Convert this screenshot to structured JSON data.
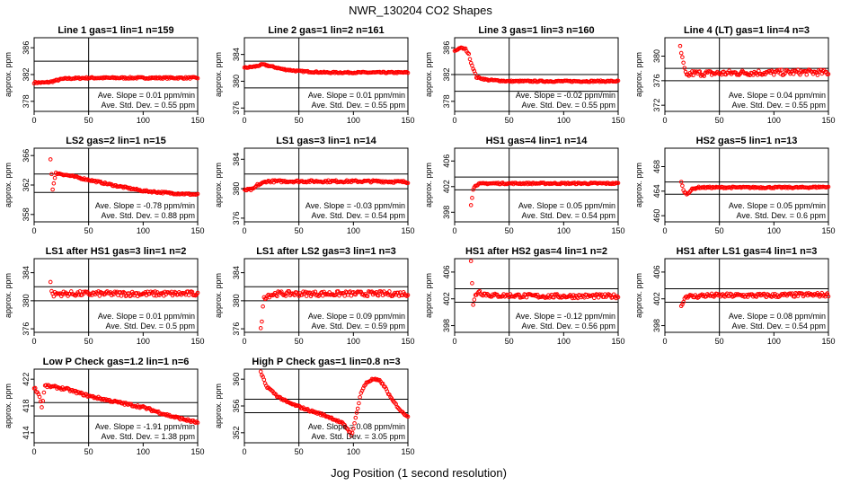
{
  "figure": {
    "title": "NWR_130204  CO2 Shapes",
    "xlabel": "Jog Position (1 second resolution)",
    "ylabel": "approx. ppm",
    "point_color": "#ff0000",
    "ref_line_color": "#000000"
  },
  "chart_data": [
    {
      "type": "scatter",
      "title": "Line 1 gas=1 lin=1 n=159",
      "xlim": [
        0,
        150
      ],
      "ylim": [
        376.5,
        387.5
      ],
      "yticks": [
        378,
        382,
        386
      ],
      "xticks": [
        0,
        50,
        100,
        150
      ],
      "hlines": [
        384,
        380
      ],
      "vline": 50,
      "slope_text": "Ave. Slope = 0.01  ppm/min",
      "sd_text": "Ave. Std. Dev. = 0.55  ppm",
      "x": [
        0,
        10,
        15,
        20,
        25,
        30,
        50,
        75,
        100,
        125,
        150
      ],
      "y": [
        380.8,
        380.8,
        380.9,
        381.1,
        381.3,
        381.4,
        381.5,
        381.5,
        381.5,
        381.5,
        381.5
      ],
      "noise": 0.12,
      "start": 0,
      "end": 150
    },
    {
      "type": "scatter",
      "title": "Line 2 gas=1 lin=2 n=161",
      "xlim": [
        0,
        150
      ],
      "ylim": [
        375.5,
        386.5
      ],
      "yticks": [
        376,
        380,
        384
      ],
      "xticks": [
        0,
        50,
        100,
        150
      ],
      "hlines": [
        383,
        379
      ],
      "vline": 50,
      "slope_text": "Ave. Slope = 0.01  ppm/min",
      "sd_text": "Ave. Std. Dev. = 0.55  ppm",
      "x": [
        0,
        10,
        17,
        25,
        35,
        50,
        75,
        100,
        125,
        150
      ],
      "y": [
        382.0,
        382.2,
        382.5,
        382.2,
        381.8,
        381.5,
        381.3,
        381.3,
        381.3,
        381.3
      ],
      "noise": 0.1,
      "start": 0,
      "end": 150
    },
    {
      "type": "scatter",
      "title": "Line 3 gas=1 lin=3 n=160",
      "xlim": [
        0,
        150
      ],
      "ylim": [
        376.5,
        387.5
      ],
      "yticks": [
        378,
        382,
        386
      ],
      "xticks": [
        0,
        50,
        100,
        150
      ],
      "hlines": [
        382,
        379.5
      ],
      "vline": 50,
      "slope_text": "Ave. Slope = -0.02  ppm/min",
      "sd_text": "Ave. Std. Dev. = 0.55  ppm",
      "x": [
        0,
        5,
        10,
        13,
        15,
        18,
        20,
        30,
        50,
        75,
        100,
        125,
        150
      ],
      "y": [
        385.5,
        386,
        385.8,
        385,
        383.8,
        382.5,
        381.6,
        381.2,
        381.0,
        381.0,
        381.0,
        381.0,
        381.0
      ],
      "noise": 0.1,
      "start": 0,
      "end": 150
    },
    {
      "type": "scatter",
      "title": "Line 4 (LT) gas=1 lin=4 n=3",
      "xlim": [
        0,
        150
      ],
      "ylim": [
        371,
        383
      ],
      "yticks": [
        372,
        376,
        380
      ],
      "xticks": [
        0,
        50,
        100,
        150
      ],
      "hlines": [
        378,
        376
      ],
      "vline": 50,
      "slope_text": "Ave. Slope = 0.04  ppm/min",
      "sd_text": "Ave. Std. Dev. = 0.55  ppm",
      "x": [
        14,
        16,
        18,
        20,
        22,
        25,
        35,
        50,
        75,
        100,
        125,
        150
      ],
      "y": [
        381.5,
        379.5,
        377.8,
        376.6,
        377.0,
        377.2,
        377.2,
        377.2,
        377.3,
        377.3,
        377.4,
        377.3
      ],
      "noise": 0.45,
      "start": 14,
      "end": 150
    },
    {
      "type": "scatter",
      "title": "LS2 gas=2 lin=1 n=15",
      "xlim": [
        0,
        150
      ],
      "ylim": [
        357,
        367
      ],
      "yticks": [
        358,
        362,
        366
      ],
      "xticks": [
        0,
        50,
        100,
        150
      ],
      "hlines": [
        363.5,
        361
      ],
      "vline": 50,
      "slope_text": "Ave. Slope = -0.78  ppm/min",
      "sd_text": "Ave. Std. Dev. = 0.88  ppm",
      "x": [
        15,
        17,
        20,
        25,
        50,
        75,
        100,
        125,
        150
      ],
      "y": [
        365.5,
        361.5,
        363.6,
        363.5,
        362.7,
        361.9,
        361.2,
        360.9,
        360.7
      ],
      "noise": 0.12,
      "start": 15,
      "end": 150
    },
    {
      "type": "scatter",
      "title": "LS1 gas=3 lin=1 n=14",
      "xlim": [
        0,
        150
      ],
      "ylim": [
        375.5,
        385.5
      ],
      "yticks": [
        376,
        380,
        384
      ],
      "xticks": [
        0,
        50,
        100,
        150
      ],
      "hlines": [
        382,
        380
      ],
      "vline": 50,
      "slope_text": "Ave. Slope = -0.03  ppm/min",
      "sd_text": "Ave. Std. Dev. = 0.54  ppm",
      "x": [
        0,
        8,
        12,
        16,
        20,
        30,
        50,
        75,
        100,
        125,
        150
      ],
      "y": [
        379.8,
        379.9,
        380.5,
        380.7,
        381.0,
        381.0,
        381.0,
        381.0,
        381.0,
        381.0,
        380.9
      ],
      "noise": 0.15,
      "start": 0,
      "end": 150
    },
    {
      "type": "scatter",
      "title": "HS1 gas=4 lin=1 n=14",
      "xlim": [
        0,
        150
      ],
      "ylim": [
        396.5,
        408
      ],
      "yticks": [
        398,
        402,
        406
      ],
      "xticks": [
        0,
        50,
        100,
        150
      ],
      "hlines": [
        403.5,
        401.5
      ],
      "vline": 50,
      "slope_text": "Ave. Slope = 0.05  ppm/min",
      "sd_text": "Ave. Std. Dev. = 0.54  ppm",
      "x": [
        15,
        17,
        19,
        22,
        30,
        50,
        75,
        100,
        125,
        150
      ],
      "y": [
        399.2,
        401.5,
        402.2,
        402.4,
        402.5,
        402.5,
        402.5,
        402.5,
        402.5,
        402.5
      ],
      "noise": 0.12,
      "start": 15,
      "end": 150
    },
    {
      "type": "scatter",
      "title": "HS2 gas=5 lin=1 n=13",
      "xlim": [
        0,
        150
      ],
      "ylim": [
        459,
        471
      ],
      "yticks": [
        460,
        464,
        468
      ],
      "xticks": [
        0,
        50,
        100,
        150
      ],
      "hlines": [
        465.5,
        463.5
      ],
      "vline": 50,
      "slope_text": "Ave. Slope = 0.05  ppm/min",
      "sd_text": "Ave. Std. Dev. = 0.6  ppm",
      "x": [
        15,
        17,
        20,
        25,
        30,
        50,
        75,
        100,
        125,
        150
      ],
      "y": [
        465.6,
        464.1,
        463.5,
        464.3,
        464.6,
        464.6,
        464.6,
        464.6,
        464.6,
        464.7
      ],
      "noise": 0.12,
      "start": 15,
      "end": 150
    },
    {
      "type": "scatter",
      "title": "LS1 after HS1 gas=3 lin=1 n=2",
      "xlim": [
        0,
        150
      ],
      "ylim": [
        375.5,
        386
      ],
      "yticks": [
        376,
        380,
        384
      ],
      "xticks": [
        0,
        50,
        100,
        150
      ],
      "hlines": [
        382,
        380
      ],
      "vline": 50,
      "slope_text": "Ave. Slope = 0.01  ppm/min",
      "sd_text": "Ave. Std. Dev. = 0.5  ppm",
      "x": [
        15,
        17,
        20,
        30,
        50,
        75,
        100,
        125,
        150
      ],
      "y": [
        382.5,
        380.8,
        381.0,
        381.0,
        381.0,
        381.0,
        381.0,
        381.0,
        381.0
      ],
      "noise": 0.35,
      "start": 15,
      "end": 150
    },
    {
      "type": "scatter",
      "title": "LS1 after LS2 gas=3 lin=1 n=3",
      "xlim": [
        0,
        150
      ],
      "ylim": [
        375.5,
        386
      ],
      "yticks": [
        376,
        380,
        384
      ],
      "xticks": [
        0,
        50,
        100,
        150
      ],
      "hlines": [
        382,
        380
      ],
      "vline": 50,
      "slope_text": "Ave. Slope = 0.09  ppm/min",
      "sd_text": "Ave. Std. Dev. = 0.59  ppm",
      "x": [
        15,
        18,
        22,
        30,
        50,
        75,
        100,
        125,
        150
      ],
      "y": [
        375.8,
        380.5,
        380.8,
        381.0,
        381.0,
        381.0,
        381.0,
        381.0,
        381.0
      ],
      "noise": 0.35,
      "start": 15,
      "end": 150
    },
    {
      "type": "scatter",
      "title": "HS1 after HS2 gas=4 lin=1 n=2",
      "xlim": [
        0,
        150
      ],
      "ylim": [
        397,
        408
      ],
      "yticks": [
        398,
        402,
        406
      ],
      "xticks": [
        0,
        50,
        100,
        150
      ],
      "hlines": [
        403.5,
        401.5
      ],
      "vline": 50,
      "slope_text": "Ave. Slope = -0.12  ppm/min",
      "sd_text": "Ave. Std. Dev. = 0.56  ppm",
      "x": [
        15,
        17,
        19,
        22,
        25,
        35,
        50,
        75,
        100,
        125,
        150
      ],
      "y": [
        407.8,
        401.0,
        402.5,
        403.2,
        402.8,
        402.5,
        402.5,
        402.4,
        402.4,
        402.4,
        402.4
      ],
      "noise": 0.3,
      "start": 15,
      "end": 150
    },
    {
      "type": "scatter",
      "title": "HS1 after LS1 gas=4 lin=1 n=3",
      "xlim": [
        0,
        150
      ],
      "ylim": [
        397,
        408
      ],
      "yticks": [
        398,
        402,
        406
      ],
      "xticks": [
        0,
        50,
        100,
        150
      ],
      "hlines": [
        403.5,
        401.5
      ],
      "vline": 50,
      "slope_text": "Ave. Slope = 0.08  ppm/min",
      "sd_text": "Ave. Std. Dev. = 0.54  ppm",
      "x": [
        15,
        17,
        20,
        25,
        35,
        50,
        75,
        100,
        125,
        150
      ],
      "y": [
        400.8,
        401.8,
        402.5,
        402.3,
        402.5,
        402.5,
        402.5,
        402.5,
        402.6,
        402.6
      ],
      "noise": 0.3,
      "start": 15,
      "end": 150
    },
    {
      "type": "scatter",
      "title": "Low P Check gas=1.2 lin=1 n=6",
      "xlim": [
        0,
        150
      ],
      "ylim": [
        412.5,
        423.5
      ],
      "yticks": [
        414,
        418,
        422
      ],
      "xticks": [
        0,
        50,
        100,
        150
      ],
      "hlines": [
        418.5,
        416.5
      ],
      "vline": 50,
      "slope_text": "Ave. Slope = -1.91  ppm/min",
      "sd_text": "Ave. Std. Dev. = 1.38  ppm",
      "x": [
        0,
        5,
        7,
        10,
        20,
        30,
        40,
        50,
        75,
        100,
        125,
        150
      ],
      "y": [
        420.8,
        419.5,
        417.8,
        421.0,
        420.8,
        420.5,
        420.0,
        419.5,
        418.6,
        417.8,
        416.5,
        415.5
      ],
      "noise": 0.18,
      "start": 0,
      "end": 150
    },
    {
      "type": "scatter",
      "title": "High P Check gas=1 lin=0.8 n=3",
      "xlim": [
        0,
        150
      ],
      "ylim": [
        350.5,
        361.5
      ],
      "yticks": [
        352,
        356,
        360
      ],
      "xticks": [
        0,
        50,
        100,
        150
      ],
      "hlines": [
        357,
        355
      ],
      "vline": 50,
      "slope_text": "Ave. Slope = 0.08  ppm/min",
      "sd_text": "Ave. Std. Dev. = 3.05  ppm",
      "x": [
        15,
        20,
        30,
        40,
        50,
        60,
        70,
        80,
        90,
        95,
        98,
        100,
        103,
        107,
        112,
        118,
        125,
        130,
        135,
        140,
        145,
        150
      ],
      "y": [
        361.0,
        359.0,
        357.5,
        356.5,
        355.9,
        355.3,
        354.8,
        354.2,
        353.4,
        352.5,
        351.7,
        352.5,
        355.0,
        358.0,
        359.5,
        360.0,
        359.7,
        358.5,
        357.0,
        356.0,
        355.0,
        354.5
      ],
      "noise": 0.15,
      "start": 15,
      "end": 150
    }
  ]
}
